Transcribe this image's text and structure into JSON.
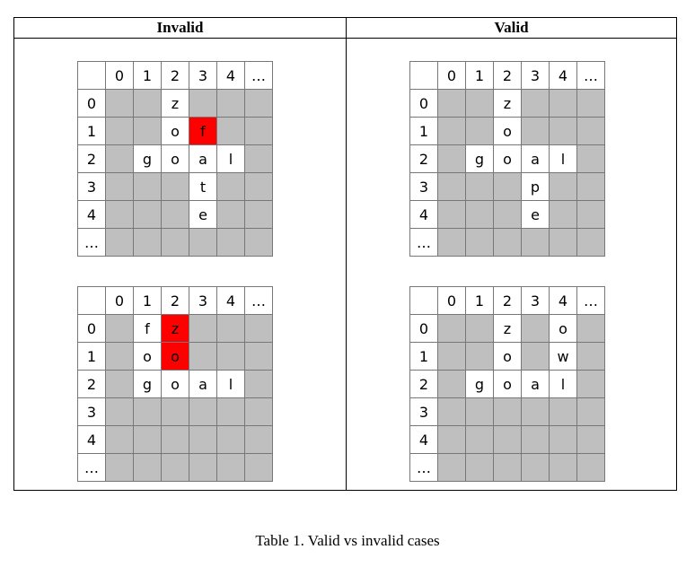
{
  "table": {
    "headers": {
      "left": "Invalid",
      "right": "Valid"
    },
    "grids": [
      {
        "id": "invalid-1",
        "cells": [
          [
            "",
            "0",
            "1",
            "2",
            "3",
            "4",
            "…"
          ],
          [
            "0",
            "",
            "",
            "z",
            "",
            "",
            ""
          ],
          [
            "1",
            "",
            "",
            "o",
            "f",
            "",
            ""
          ],
          [
            "2",
            "",
            "g",
            "o",
            "a",
            "l",
            ""
          ],
          [
            "3",
            "",
            "",
            "",
            "t",
            "",
            ""
          ],
          [
            "4",
            "",
            "",
            "",
            "e",
            "",
            ""
          ],
          [
            "…",
            "",
            "",
            "",
            "",
            "",
            ""
          ]
        ],
        "highlight": [
          [
            1,
            3
          ]
        ]
      },
      {
        "id": "valid-1",
        "cells": [
          [
            "",
            "0",
            "1",
            "2",
            "3",
            "4",
            "…"
          ],
          [
            "0",
            "",
            "",
            "z",
            "",
            "",
            ""
          ],
          [
            "1",
            "",
            "",
            "o",
            "",
            "",
            ""
          ],
          [
            "2",
            "",
            "g",
            "o",
            "a",
            "l",
            ""
          ],
          [
            "3",
            "",
            "",
            "",
            "p",
            "",
            ""
          ],
          [
            "4",
            "",
            "",
            "",
            "e",
            "",
            ""
          ],
          [
            "…",
            "",
            "",
            "",
            "",
            "",
            ""
          ]
        ],
        "highlight": []
      },
      {
        "id": "invalid-2",
        "cells": [
          [
            "",
            "0",
            "1",
            "2",
            "3",
            "4",
            "…"
          ],
          [
            "0",
            "",
            "f",
            "z",
            "",
            "",
            ""
          ],
          [
            "1",
            "",
            "o",
            "o",
            "",
            "",
            ""
          ],
          [
            "2",
            "",
            "g",
            "o",
            "a",
            "l",
            ""
          ],
          [
            "3",
            "",
            "",
            "",
            "",
            "",
            ""
          ],
          [
            "4",
            "",
            "",
            "",
            "",
            "",
            ""
          ],
          [
            "…",
            "",
            "",
            "",
            "",
            "",
            ""
          ]
        ],
        "highlight": [
          [
            0,
            2
          ],
          [
            1,
            2
          ]
        ]
      },
      {
        "id": "valid-2",
        "cells": [
          [
            "",
            "0",
            "1",
            "2",
            "3",
            "4",
            "…"
          ],
          [
            "0",
            "",
            "",
            "z",
            "",
            "o",
            ""
          ],
          [
            "1",
            "",
            "",
            "o",
            "",
            "w",
            ""
          ],
          [
            "2",
            "",
            "g",
            "o",
            "a",
            "l",
            ""
          ],
          [
            "3",
            "",
            "",
            "",
            "",
            "",
            ""
          ],
          [
            "4",
            "",
            "",
            "",
            "",
            "",
            ""
          ],
          [
            "…",
            "",
            "",
            "",
            "",
            "",
            ""
          ]
        ],
        "highlight": []
      }
    ]
  },
  "caption": "Table 1. Valid vs invalid cases",
  "colors": {
    "blocked": "#bfbfbf",
    "conflict": "#ff0000",
    "open": "#ffffff"
  }
}
